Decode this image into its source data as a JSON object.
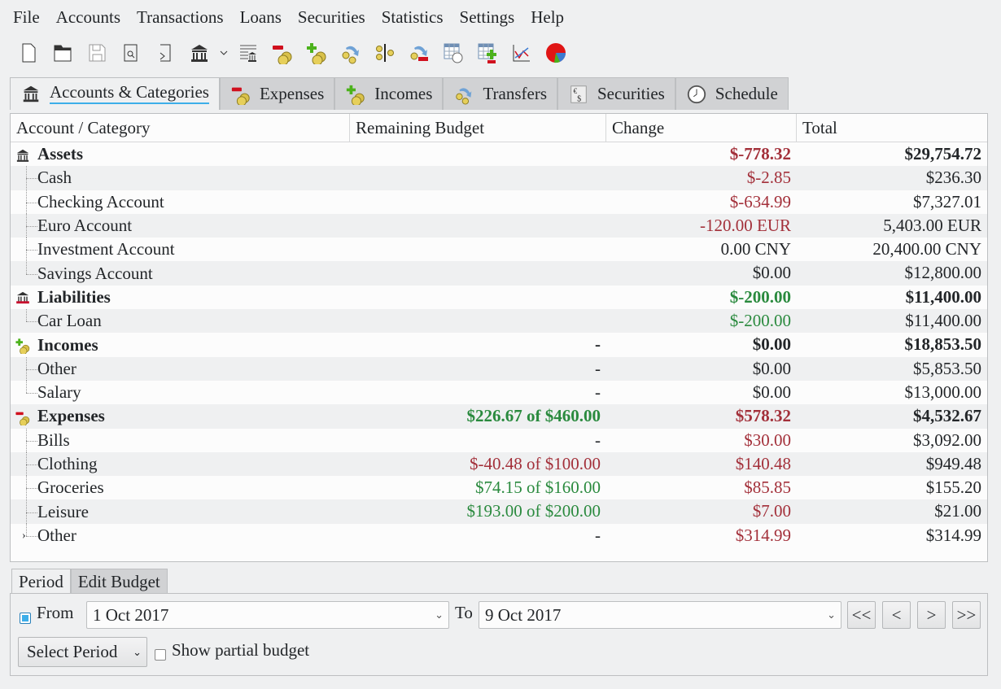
{
  "menu": [
    "File",
    "Accounts",
    "Transactions",
    "Loans",
    "Securities",
    "Statistics",
    "Settings",
    "Help"
  ],
  "toolbar": [
    {
      "icon": "new-file-icon"
    },
    {
      "icon": "open-folder-icon"
    },
    {
      "icon": "save-icon"
    },
    {
      "icon": "print-preview-icon"
    },
    {
      "icon": "import-icon"
    },
    {
      "icon": "bank-account-icon"
    },
    {
      "icon": "chevron-down-icon"
    },
    {
      "icon": "balance-account-icon"
    },
    {
      "icon": "new-expense-icon"
    },
    {
      "icon": "new-income-icon"
    },
    {
      "icon": "new-transfer-icon"
    },
    {
      "icon": "split-transaction-icon"
    },
    {
      "icon": "new-debt-payment-icon"
    },
    {
      "icon": "scheduled-transactions-icon"
    },
    {
      "icon": "security-table-icon"
    },
    {
      "icon": "line-chart-icon"
    },
    {
      "icon": "pie-chart-icon"
    }
  ],
  "tabs": [
    {
      "label": "Accounts & Categories",
      "icon": "bank-icon",
      "active": true
    },
    {
      "label": "Expenses",
      "icon": "expense-icon"
    },
    {
      "label": "Incomes",
      "icon": "income-icon"
    },
    {
      "label": "Transfers",
      "icon": "transfer-icon"
    },
    {
      "label": "Securities",
      "icon": "securities-icon"
    },
    {
      "label": "Schedule",
      "icon": "clock-icon"
    }
  ],
  "columns": [
    "Account / Category",
    "Remaining Budget",
    "Change",
    "Total"
  ],
  "colors": {
    "negative": "#a3303a",
    "positive": "#2a8a3e",
    "accent": "#3daee9"
  },
  "rows": [
    {
      "name": "Assets",
      "type": "group",
      "icon": "bank-icon",
      "budget": "",
      "change": "$-778.32",
      "change_color": "red",
      "total": "$29,754.72"
    },
    {
      "name": "Cash",
      "change": "$-2.85",
      "change_color": "red",
      "total": "$236.30"
    },
    {
      "name": "Checking Account",
      "change": "$-634.99",
      "change_color": "red",
      "total": "$7,327.01"
    },
    {
      "name": "Euro Account",
      "change": "-120.00 EUR",
      "change_color": "red",
      "total": "5,403.00 EUR"
    },
    {
      "name": "Investment Account",
      "change": "0.00 CNY",
      "total": "20,400.00 CNY"
    },
    {
      "name": "Savings Account",
      "change": "$0.00",
      "total": "$12,800.00",
      "last": true
    },
    {
      "name": "Liabilities",
      "type": "group",
      "icon": "liability-icon",
      "change": "$-200.00",
      "change_color": "green",
      "total": "$11,400.00"
    },
    {
      "name": "Car Loan",
      "change": "$-200.00",
      "change_color": "green",
      "total": "$11,400.00",
      "last": true
    },
    {
      "name": "Incomes",
      "type": "group",
      "icon": "income-icon",
      "budget": "-",
      "change": "$0.00",
      "total": "$18,853.50"
    },
    {
      "name": "Other",
      "budget": "-",
      "change": "$0.00",
      "total": "$5,853.50"
    },
    {
      "name": "Salary",
      "budget": "-",
      "change": "$0.00",
      "total": "$13,000.00",
      "last": true
    },
    {
      "name": "Expenses",
      "type": "group",
      "icon": "expense-icon",
      "budget": "$226.67 of $460.00",
      "budget_color": "green",
      "change": "$578.32",
      "change_color": "red",
      "total": "$4,532.67"
    },
    {
      "name": "Bills",
      "budget": "-",
      "change": "$30.00",
      "change_color": "red",
      "total": "$3,092.00"
    },
    {
      "name": "Clothing",
      "budget": "$-40.48 of $100.00",
      "budget_color": "red",
      "change": "$140.48",
      "change_color": "red",
      "total": "$949.48"
    },
    {
      "name": "Groceries",
      "budget": "$74.15 of $160.00",
      "budget_color": "green",
      "change": "$85.85",
      "change_color": "red",
      "total": "$155.20"
    },
    {
      "name": "Leisure",
      "budget": "$193.00 of $200.00",
      "budget_color": "green",
      "change": "$7.00",
      "change_color": "red",
      "total": "$21.00"
    },
    {
      "name": "Other",
      "budget": "-",
      "change": "$314.99",
      "change_color": "red",
      "total": "$314.99",
      "last": true,
      "expandable": true
    }
  ],
  "bottom_tabs": [
    {
      "label": "Period",
      "active": true
    },
    {
      "label": "Edit Budget"
    }
  ],
  "period": {
    "from_checked": true,
    "from_label": "From",
    "from_value": "1 Oct 2017",
    "to_label": "To",
    "to_value": "9 Oct 2017",
    "nav": [
      "<<",
      "<",
      ">",
      ">>"
    ],
    "select_period": "Select Period",
    "partial_label": "Show partial budget",
    "partial_checked": false
  }
}
